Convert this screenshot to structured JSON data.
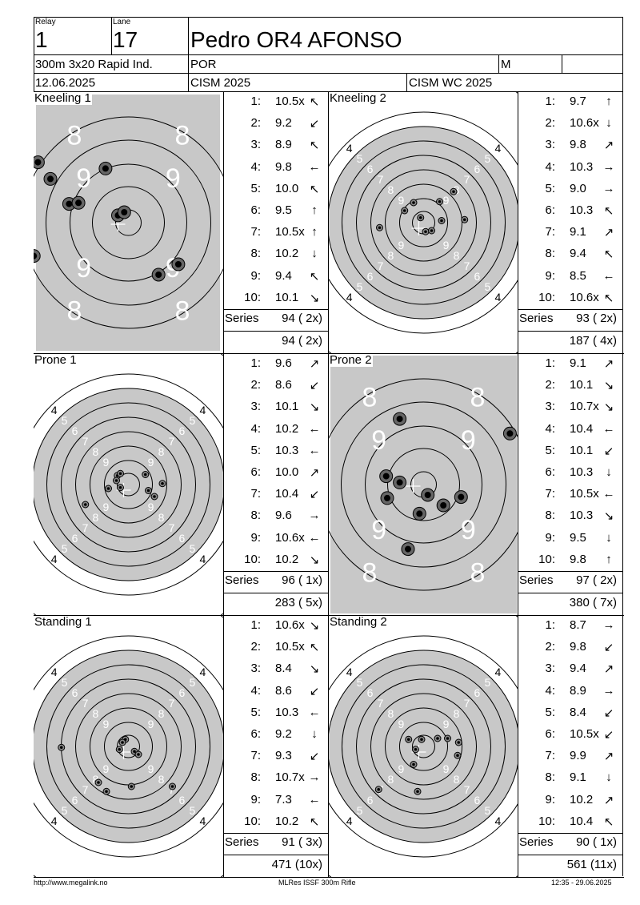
{
  "header": {
    "relay_label": "Relay",
    "relay": "1",
    "lane_label": "Lane",
    "lane": "17",
    "name": "Pedro OR4 AFONSO",
    "event": "300m 3x20 Rapid Ind.",
    "nation": "POR",
    "gender": "M",
    "date": "12.06.2025",
    "competition": "CISM 2025",
    "match": "CISM WC 2025"
  },
  "series_label": "Series",
  "sections": [
    {
      "title": "Kneeling 1",
      "target": "kneeling",
      "shots": [
        {
          "n": "1:",
          "v": "10.5x",
          "arrow": "↖"
        },
        {
          "n": "2:",
          "v": "9.2",
          "arrow": "↙"
        },
        {
          "n": "3:",
          "v": "8.9",
          "arrow": "↖"
        },
        {
          "n": "4:",
          "v": "9.8",
          "arrow": "←"
        },
        {
          "n": "5:",
          "v": "10.0",
          "arrow": "↖"
        },
        {
          "n": "6:",
          "v": "9.5",
          "arrow": "↑"
        },
        {
          "n": "7:",
          "v": "10.5x",
          "arrow": "↑"
        },
        {
          "n": "8:",
          "v": "10.2",
          "arrow": "↓"
        },
        {
          "n": "9:",
          "v": "9.4",
          "arrow": "↖"
        },
        {
          "n": "10:",
          "v": "10.1",
          "arrow": "↘"
        }
      ],
      "series": "94 ( 2x)",
      "total": "94 ( 2x)",
      "hits": [
        [
          -0.22,
          0.52
        ],
        [
          -0.87,
          0.58
        ],
        [
          -0.75,
          0.42
        ],
        [
          -0.57,
          0.18
        ],
        [
          -0.48,
          0.19
        ],
        [
          -0.1,
          0.07
        ],
        [
          -0.04,
          0.1
        ],
        [
          0.29,
          -0.5
        ],
        [
          0.48,
          -0.4
        ],
        [
          -0.91,
          -0.32
        ]
      ]
    },
    {
      "title": "Kneeling 2",
      "target": "standard",
      "shots": [
        {
          "n": "1:",
          "v": "9.7",
          "arrow": "↑"
        },
        {
          "n": "2:",
          "v": "10.6x",
          "arrow": "↓"
        },
        {
          "n": "3:",
          "v": "9.8",
          "arrow": "↗"
        },
        {
          "n": "4:",
          "v": "10.3",
          "arrow": "→"
        },
        {
          "n": "5:",
          "v": "9.0",
          "arrow": "→"
        },
        {
          "n": "6:",
          "v": "10.3",
          "arrow": "↖"
        },
        {
          "n": "7:",
          "v": "9.1",
          "arrow": "↗"
        },
        {
          "n": "8:",
          "v": "9.4",
          "arrow": "↖"
        },
        {
          "n": "9:",
          "v": "8.5",
          "arrow": "←"
        },
        {
          "n": "10:",
          "v": "10.6x",
          "arrow": "↖"
        }
      ],
      "series": "93 ( 2x)",
      "total": "187 ( 4x)",
      "hits": [
        [
          -0.1,
          0.2
        ],
        [
          0.02,
          -0.09
        ],
        [
          0.16,
          0.21
        ],
        [
          0.18,
          0.02
        ],
        [
          0.41,
          0.03
        ],
        [
          -0.03,
          0.05
        ],
        [
          0.3,
          0.31
        ],
        [
          -0.19,
          0.12
        ],
        [
          -0.44,
          -0.05
        ],
        [
          0.08,
          -0.08
        ]
      ]
    },
    {
      "title": "Prone 1",
      "target": "standard",
      "shots": [
        {
          "n": "1:",
          "v": "9.6",
          "arrow": "↗"
        },
        {
          "n": "2:",
          "v": "8.6",
          "arrow": "↙"
        },
        {
          "n": "3:",
          "v": "10.1",
          "arrow": "↘"
        },
        {
          "n": "4:",
          "v": "10.2",
          "arrow": "←"
        },
        {
          "n": "5:",
          "v": "10.3",
          "arrow": "←"
        },
        {
          "n": "6:",
          "v": "10.0",
          "arrow": "↗"
        },
        {
          "n": "7:",
          "v": "10.4",
          "arrow": "↙"
        },
        {
          "n": "8:",
          "v": "9.6",
          "arrow": "→"
        },
        {
          "n": "9:",
          "v": "10.6x",
          "arrow": "←"
        },
        {
          "n": "10:",
          "v": "10.2",
          "arrow": "↘"
        }
      ],
      "series": "96 ( 1x)",
      "total": "283 ( 5x)",
      "hits": [
        [
          0.17,
          0.1
        ],
        [
          -0.43,
          -0.2
        ],
        [
          -0.08,
          -0.03
        ],
        [
          -0.11,
          0.09
        ],
        [
          -0.12,
          0.04
        ],
        [
          0.2,
          -0.06
        ],
        [
          -0.2,
          -0.04
        ],
        [
          0.34,
          0.01
        ],
        [
          -0.08,
          0.11
        ],
        [
          0.26,
          -0.12
        ]
      ]
    },
    {
      "title": "Prone 2",
      "target": "prone",
      "shots": [
        {
          "n": "1:",
          "v": "9.1",
          "arrow": "↗"
        },
        {
          "n": "2:",
          "v": "10.1",
          "arrow": "↘"
        },
        {
          "n": "3:",
          "v": "10.7x",
          "arrow": "↘"
        },
        {
          "n": "4:",
          "v": "10.4",
          "arrow": "←"
        },
        {
          "n": "5:",
          "v": "10.1",
          "arrow": "↙"
        },
        {
          "n": "6:",
          "v": "10.3",
          "arrow": "↓"
        },
        {
          "n": "7:",
          "v": "10.5x",
          "arrow": "←"
        },
        {
          "n": "8:",
          "v": "10.3",
          "arrow": "↘"
        },
        {
          "n": "9:",
          "v": "9.5",
          "arrow": "↓"
        },
        {
          "n": "10:",
          "v": "9.8",
          "arrow": "↑"
        }
      ],
      "series": "97 ( 2x)",
      "total": "380 ( 7x)",
      "hits": [
        [
          0.83,
          0.49
        ],
        [
          -0.23,
          0.63
        ],
        [
          0.04,
          -0.1
        ],
        [
          -0.23,
          0.02
        ],
        [
          -0.35,
          -0.13
        ],
        [
          0.19,
          -0.2
        ],
        [
          0.36,
          -0.12
        ],
        [
          -0.36,
          0.08
        ],
        [
          -0.04,
          -0.28
        ],
        [
          -0.15,
          -0.62
        ]
      ]
    },
    {
      "title": "Standing 1",
      "target": "standard",
      "shots": [
        {
          "n": "1:",
          "v": "10.6x",
          "arrow": "↘"
        },
        {
          "n": "2:",
          "v": "10.5x",
          "arrow": "↖"
        },
        {
          "n": "3:",
          "v": "8.4",
          "arrow": "↘"
        },
        {
          "n": "4:",
          "v": "8.6",
          "arrow": "↙"
        },
        {
          "n": "5:",
          "v": "10.3",
          "arrow": "←"
        },
        {
          "n": "6:",
          "v": "9.2",
          "arrow": "↓"
        },
        {
          "n": "7:",
          "v": "9.3",
          "arrow": "↙"
        },
        {
          "n": "8:",
          "v": "10.7x",
          "arrow": "→"
        },
        {
          "n": "9:",
          "v": "7.3",
          "arrow": "←"
        },
        {
          "n": "10:",
          "v": "10.2",
          "arrow": "↖"
        }
      ],
      "series": "91 ( 3x)",
      "total": "471 (10x)",
      "hits": [
        [
          0.06,
          -0.05
        ],
        [
          -0.03,
          0.07
        ],
        [
          0.44,
          -0.4
        ],
        [
          -0.22,
          -0.45
        ],
        [
          -0.09,
          -0.03
        ],
        [
          0.03,
          -0.4
        ],
        [
          -0.3,
          -0.36
        ],
        [
          0.1,
          -0.08
        ],
        [
          -0.67,
          -0.01
        ],
        [
          -0.06,
          0.04
        ]
      ]
    },
    {
      "title": "Standing 2",
      "target": "standard",
      "shots": [
        {
          "n": "1:",
          "v": "8.7",
          "arrow": "→"
        },
        {
          "n": "2:",
          "v": "9.8",
          "arrow": "↙"
        },
        {
          "n": "3:",
          "v": "9.4",
          "arrow": "↗"
        },
        {
          "n": "4:",
          "v": "8.9",
          "arrow": "→"
        },
        {
          "n": "5:",
          "v": "8.4",
          "arrow": "↙"
        },
        {
          "n": "6:",
          "v": "10.5x",
          "arrow": "↙"
        },
        {
          "n": "7:",
          "v": "9.9",
          "arrow": "↗"
        },
        {
          "n": "8:",
          "v": "9.1",
          "arrow": "↓"
        },
        {
          "n": "9:",
          "v": "10.2",
          "arrow": "↗"
        },
        {
          "n": "10:",
          "v": "10.4",
          "arrow": "↖"
        }
      ],
      "series": "90 ( 1x)",
      "total": "561 (11x)",
      "hits": [
        [
          0.35,
          0.04
        ],
        [
          -0.1,
          -0.18
        ],
        [
          0.14,
          0.08
        ],
        [
          0.34,
          -0.09
        ],
        [
          -0.45,
          -0.43
        ],
        [
          -0.08,
          -0.03
        ],
        [
          -0.02,
          0.07
        ],
        [
          -0.06,
          -0.45
        ],
        [
          0.24,
          0.08
        ],
        [
          -0.15,
          0.07
        ]
      ]
    }
  ],
  "footer": {
    "left": "http://www.megalink.no",
    "center": "MLRes ISSF 300m Rifle",
    "right": "12:35 - 29.06.2025"
  }
}
